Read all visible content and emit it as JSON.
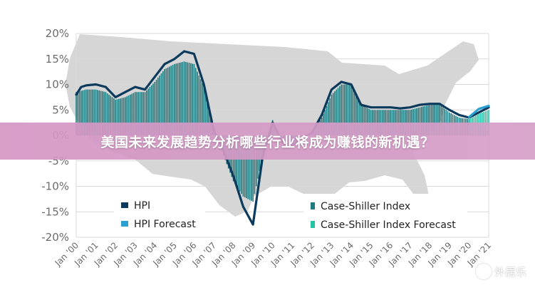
{
  "chart_data": {
    "type": "line",
    "title": "",
    "xlabel": "",
    "ylabel": "",
    "ylim": [
      -20,
      20
    ],
    "y_ticks": [
      "20%",
      "15%",
      "10%",
      "5%",
      "0%",
      "-5%",
      "-10%",
      "-15%",
      "-20%"
    ],
    "x_ticks": [
      "Jan '00",
      "Jan '01",
      "Jan '02",
      "Jan '03",
      "Jan '04",
      "Jan '05",
      "Jan '06",
      "Jan '07",
      "Jan '08",
      "Jan '09",
      "Jan '10",
      "Jan '11",
      "Jan '12",
      "Jan '13",
      "Jan '14",
      "Jan '15",
      "Jan '16",
      "Jan '17",
      "Jan '18",
      "Jan '19",
      "Jan '20",
      "Jan '21"
    ],
    "legend": [
      "HPI",
      "HPI Forecast",
      "Case-Shiller Index",
      "Case-Shiller Index Forecast"
    ],
    "colors": {
      "hpi": "#0c3a5c",
      "hpi_forecast": "#2aa1d0",
      "case_shiller": "#1e7b80",
      "case_shiller_forecast": "#27c3a6",
      "map": "#d6d6d6",
      "grid": "#d9d9d9"
    },
    "grid": true,
    "hpi": {
      "x": [
        0,
        0.25,
        0.5,
        1,
        1.5,
        2,
        2.5,
        3,
        3.5,
        4,
        4.5,
        5,
        5.5,
        6,
        6.5,
        7,
        7.5,
        8,
        8.5,
        9,
        9.5,
        10,
        10.5,
        11,
        11.5,
        12,
        12.5,
        13,
        13.5,
        14,
        14.5,
        15,
        15.5,
        16,
        16.5,
        17,
        17.5,
        18,
        18.5,
        19,
        19.5,
        20,
        20.5,
        21
      ],
      "y": [
        8,
        9.5,
        9.8,
        10,
        9.5,
        7.5,
        8.5,
        9.5,
        9,
        11.5,
        14,
        15,
        16.5,
        16,
        10,
        1,
        -3,
        -8,
        -14,
        -17.5,
        -4,
        2.5,
        -1.5,
        -2,
        -0.5,
        0.5,
        4,
        9,
        10.5,
        10,
        6,
        5.5,
        5.5,
        5.5,
        5.3,
        5.5,
        6,
        6.2,
        6.2,
        5,
        4,
        3.5,
        4.5,
        5.5
      ]
    },
    "hpi_forecast": {
      "x": [
        20,
        20.5,
        21
      ],
      "y": [
        3.6,
        5.2,
        5.8
      ]
    },
    "case_shiller": {
      "x": [
        0,
        0.5,
        1,
        1.5,
        2,
        2.5,
        3,
        3.5,
        4,
        4.5,
        5,
        5.5,
        6,
        6.5,
        7,
        7.5,
        8,
        8.5,
        9,
        9.5,
        10,
        10.5,
        11,
        11.5,
        12,
        12.5,
        13,
        13.5,
        14,
        14.5,
        15,
        15.5,
        16,
        16.5,
        17,
        17.5,
        18,
        18.5,
        19,
        19.5,
        20
      ],
      "y": [
        8.5,
        9,
        9,
        8.5,
        7,
        7.5,
        8.5,
        8.5,
        10.5,
        13,
        14,
        14.5,
        14,
        9.5,
        1,
        -4,
        -9,
        -12,
        -13,
        -4,
        3,
        -1,
        -1.5,
        -0.5,
        0.5,
        3.5,
        8,
        10,
        10,
        6,
        5,
        5,
        5,
        5,
        5,
        5.5,
        6,
        6,
        4.5,
        3.5,
        3.2
      ]
    },
    "case_shiller_forecast": {
      "x": [
        20,
        20.5,
        21
      ],
      "y": [
        3.2,
        4.2,
        5
      ]
    }
  },
  "banner": {
    "text": "美国未来发展趋势分析哪些行业将成为赚钱的新机遇？"
  },
  "watermark": {
    "text": "外居乐"
  }
}
